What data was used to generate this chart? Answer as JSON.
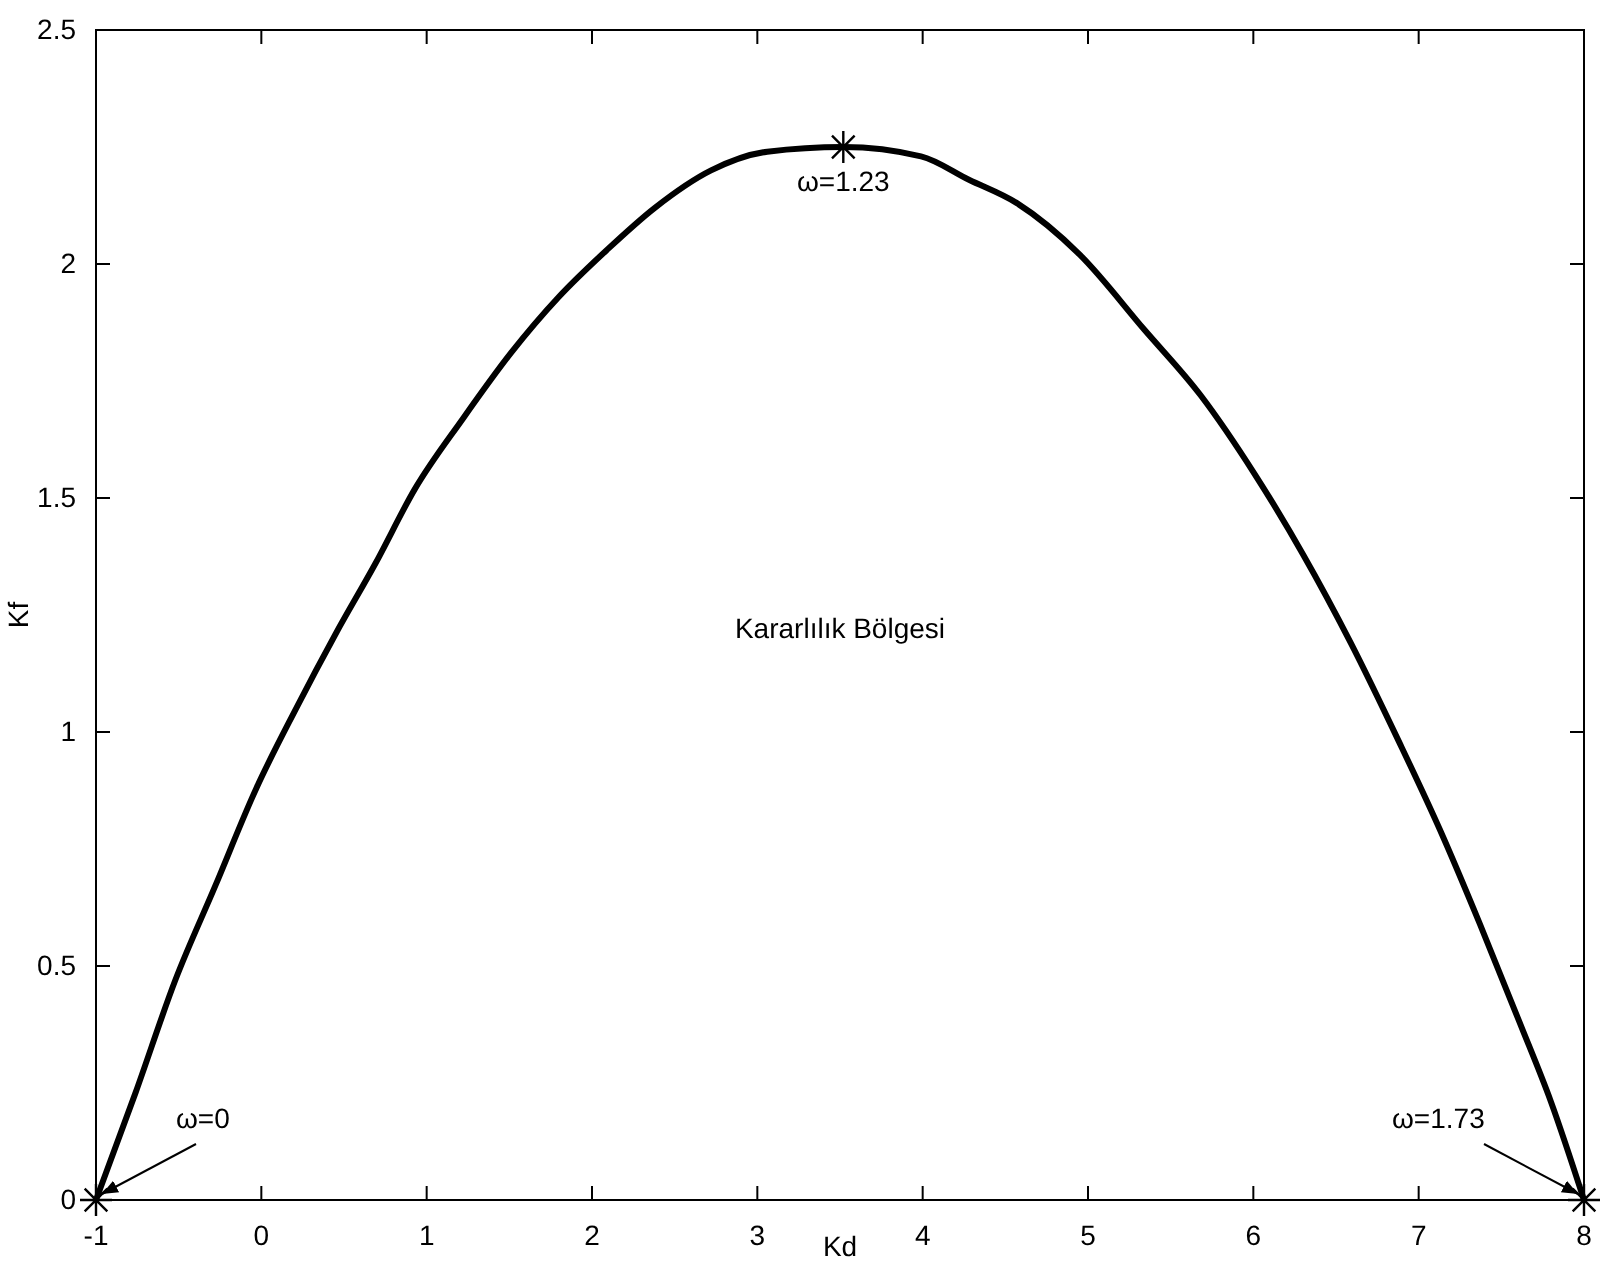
{
  "chart_data": {
    "type": "line",
    "xlabel": "Kd",
    "ylabel": "Kf",
    "xlim": [
      -1,
      8
    ],
    "ylim": [
      0,
      2.5
    ],
    "xticks": [
      -1,
      0,
      1,
      2,
      3,
      4,
      5,
      6,
      7,
      8
    ],
    "yticks": [
      0,
      0.5,
      1,
      1.5,
      2,
      2.5
    ],
    "grid": false,
    "series": [
      {
        "color": "#000000",
        "marker": "none",
        "x": [
          -1,
          -0.76,
          -0.52,
          -0.28,
          -0.03,
          0.21,
          0.45,
          0.69,
          0.93,
          1.22,
          1.51,
          1.8,
          2.09,
          2.38,
          2.72,
          3.06,
          3.52,
          3.99,
          4.28,
          4.57,
          4.95,
          5.34,
          5.68,
          6.01,
          6.3,
          6.59,
          6.88,
          7.13,
          7.37,
          7.61,
          7.8,
          8
        ],
        "values": [
          0,
          0.23,
          0.47,
          0.67,
          0.88,
          1.05,
          1.21,
          1.36,
          1.52,
          1.67,
          1.81,
          1.93,
          2.03,
          2.12,
          2.2,
          2.24,
          2.25,
          2.23,
          2.18,
          2.13,
          2.02,
          1.86,
          1.72,
          1.55,
          1.38,
          1.19,
          0.98,
          0.79,
          0.59,
          0.38,
          0.21,
          0
        ]
      },
      {
        "type": "scatter",
        "color": "#000000",
        "marker": "cross",
        "x": [
          -1,
          3.52,
          8
        ],
        "values": [
          0,
          2.25,
          0
        ]
      }
    ],
    "annotations": [
      {
        "text": "ω=0",
        "x": -1,
        "y": 0
      },
      {
        "text": "ω=1.23",
        "x": 3.52,
        "y": 2.25
      },
      {
        "text": "ω=1.73",
        "x": 8,
        "y": 0
      },
      "Kararlılık Bölgesi"
    ]
  }
}
